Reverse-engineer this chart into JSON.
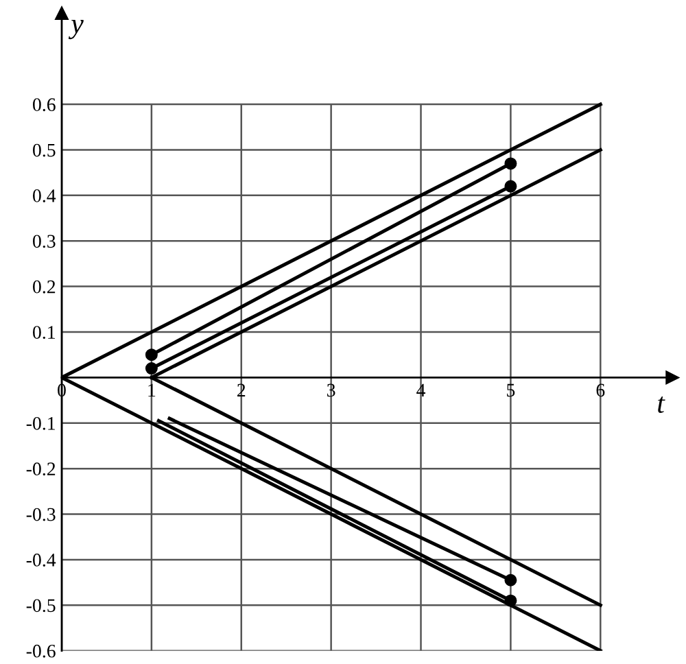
{
  "chart_data": {
    "type": "line",
    "xlabel": "t",
    "ylabel": "y",
    "xlim": [
      0,
      6.8
    ],
    "ylim": [
      -0.6,
      0.8
    ],
    "xticks": [
      0,
      1,
      2,
      3,
      4,
      5,
      6
    ],
    "yticks": [
      -0.6,
      -0.5,
      -0.4,
      -0.3,
      -0.2,
      -0.1,
      0.1,
      0.2,
      0.3,
      0.4,
      0.5,
      0.6
    ],
    "grid": true,
    "marker": "none",
    "line_style": "solid",
    "series": [
      {
        "color": "#000000",
        "x": [
          0,
          6
        ],
        "values": [
          0,
          0.6
        ]
      },
      {
        "color": "#000000",
        "x": [
          1,
          6
        ],
        "values": [
          0,
          0.5
        ]
      },
      {
        "color": "#000000",
        "x": [
          0,
          6
        ],
        "values": [
          0,
          -0.6
        ]
      },
      {
        "color": "#000000",
        "x": [
          1,
          6
        ],
        "values": [
          0,
          -0.5
        ]
      },
      {
        "color": "#000000",
        "x": [
          1,
          5
        ],
        "values": [
          0.05,
          0.47
        ]
      },
      {
        "color": "#000000",
        "x": [
          1,
          5
        ],
        "values": [
          0.02,
          0.42
        ]
      },
      {
        "color": "#000000",
        "x": [
          1.2,
          5
        ],
        "values": [
          -0.09,
          -0.445
        ]
      },
      {
        "color": "#000000",
        "x": [
          1.08,
          5
        ],
        "values": [
          -0.095,
          -0.49
        ]
      },
      {
        "type": "scatter",
        "marker": "circle",
        "color": "#000000",
        "x": [
          1,
          1,
          5,
          5,
          5,
          5
        ],
        "values": [
          0.05,
          0.02,
          0.47,
          0.42,
          -0.445,
          -0.49
        ]
      }
    ]
  }
}
